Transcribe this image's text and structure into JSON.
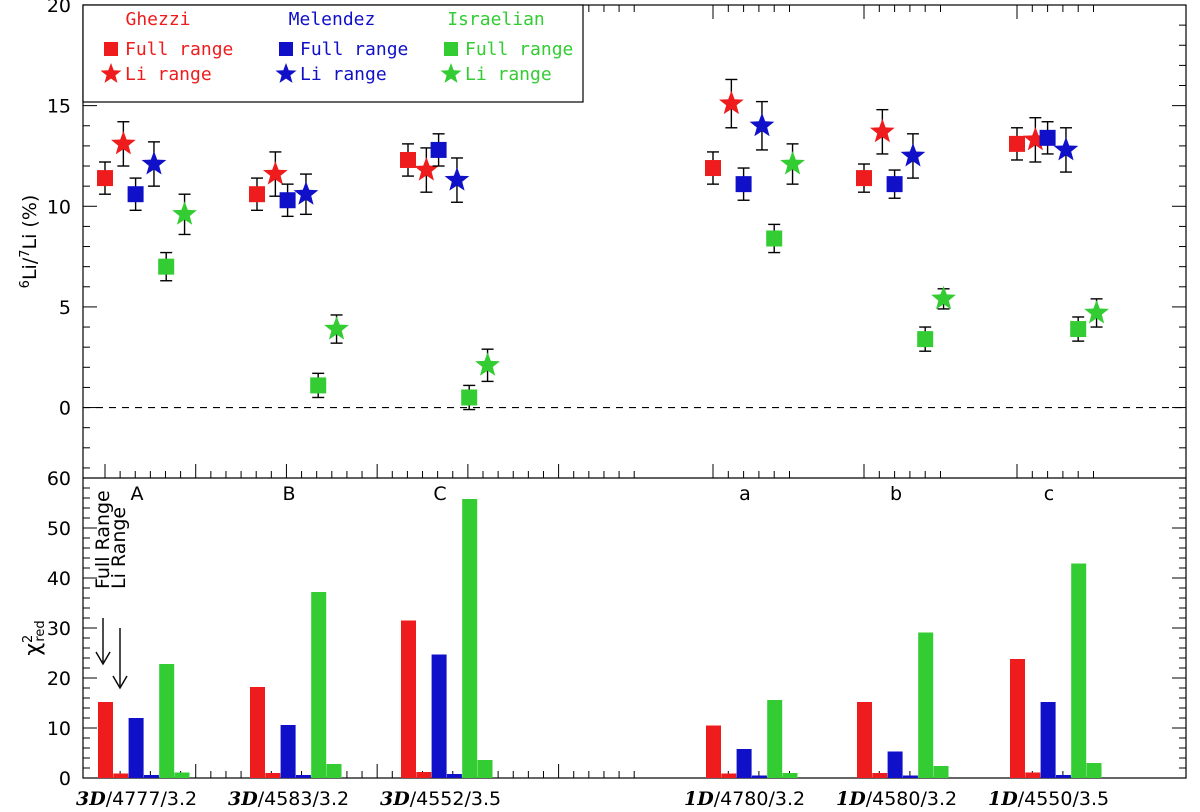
{
  "colors": {
    "Ghezzi": "#ee1c1c",
    "Melendez": "#1010c8",
    "Israelian": "#33cc33"
  },
  "chart_data": [
    {
      "type": "scatter",
      "ylabel": "6Li/7Li (%)",
      "ylabel_parts": {
        "sup1": "6",
        "a": "Li/",
        "sup2": "7",
        "b": "Li (%)"
      },
      "ylim": [
        -3.5,
        20
      ],
      "yticks": [
        0,
        5,
        10,
        15,
        20
      ],
      "reference_line": {
        "y": 0,
        "style": "dashed"
      },
      "groups": [
        "A",
        "B",
        "C",
        "a",
        "b",
        "c"
      ],
      "legend": {
        "Ghezzi": {
          "title": "Ghezzi",
          "full": "Full range",
          "li": "Li range"
        },
        "Melendez": {
          "title": "Melendez",
          "full": "Full range",
          "li": "Li range"
        },
        "Israelian": {
          "title": "Israelian",
          "full": "Full range",
          "li": "Li range"
        }
      },
      "series": [
        {
          "name": "Ghezzi Full range",
          "marker": "square",
          "values": [
            11.4,
            10.6,
            12.3,
            11.9,
            11.4,
            13.1
          ],
          "errors": [
            0.8,
            0.8,
            0.8,
            0.8,
            0.7,
            0.8
          ]
        },
        {
          "name": "Ghezzi Li range",
          "marker": "star",
          "values": [
            13.1,
            11.6,
            11.8,
            15.1,
            13.7,
            13.3
          ],
          "errors": [
            1.1,
            1.1,
            1.1,
            1.2,
            1.1,
            1.1
          ]
        },
        {
          "name": "Melendez Full range",
          "marker": "square",
          "values": [
            10.6,
            10.3,
            12.8,
            11.1,
            11.1,
            13.4
          ],
          "errors": [
            0.8,
            0.8,
            0.8,
            0.8,
            0.7,
            0.8
          ]
        },
        {
          "name": "Melendez Li range",
          "marker": "star",
          "values": [
            12.1,
            10.6,
            11.3,
            14.0,
            12.5,
            12.8
          ],
          "errors": [
            1.1,
            1.0,
            1.1,
            1.2,
            1.1,
            1.1
          ]
        },
        {
          "name": "Israelian Full range",
          "marker": "square",
          "values": [
            7.0,
            1.1,
            0.5,
            8.4,
            3.4,
            3.9
          ],
          "errors": [
            0.7,
            0.6,
            0.6,
            0.7,
            0.6,
            0.6
          ]
        },
        {
          "name": "Israelian Li range",
          "marker": "star",
          "values": [
            9.6,
            3.9,
            2.1,
            12.1,
            5.4,
            4.7
          ],
          "errors": [
            1.0,
            0.7,
            0.8,
            1.0,
            0.5,
            0.7
          ]
        }
      ]
    },
    {
      "type": "bar",
      "ylabel": "χ2red",
      "ylabel_parts": {
        "chi": "χ",
        "sup": "2",
        "sub": "red"
      },
      "ylim": [
        0,
        60
      ],
      "yticks": [
        0,
        10,
        20,
        30,
        40,
        50,
        60
      ],
      "categories": [
        "3D/4777/3.2",
        "3D/4583/3.2",
        "3D/4552/3.5",
        "1D/4780/3.2",
        "1D/4580/3.2",
        "1D/4550/3.5"
      ],
      "category_parts": [
        {
          "model": "3D",
          "rest": "/4777/3.2"
        },
        {
          "model": "3D",
          "rest": "/4583/3.2"
        },
        {
          "model": "3D",
          "rest": "/4552/3.5"
        },
        {
          "model": "1D",
          "rest": "/4780/3.2"
        },
        {
          "model": "1D",
          "rest": "/4580/3.2"
        },
        {
          "model": "1D",
          "rest": "/4550/3.5"
        }
      ],
      "annotations": {
        "full": "Full Range",
        "li": "Li Range"
      },
      "series": [
        {
          "name": "Ghezzi Full range",
          "values": [
            15.2,
            18.2,
            31.5,
            10.5,
            15.2,
            23.8
          ]
        },
        {
          "name": "Ghezzi Li range",
          "values": [
            0.9,
            1.0,
            1.2,
            0.9,
            1.0,
            1.1
          ]
        },
        {
          "name": "Melendez Full range",
          "values": [
            12.0,
            10.6,
            24.7,
            5.8,
            5.3,
            15.2
          ]
        },
        {
          "name": "Melendez Li range",
          "values": [
            0.6,
            0.6,
            0.8,
            0.5,
            0.5,
            0.6
          ]
        },
        {
          "name": "Israelian Full range",
          "values": [
            22.8,
            37.2,
            55.8,
            15.6,
            29.1,
            42.9
          ]
        },
        {
          "name": "Israelian Li range",
          "values": [
            1.1,
            2.8,
            3.6,
            1.0,
            2.4,
            3.0
          ]
        }
      ]
    }
  ]
}
